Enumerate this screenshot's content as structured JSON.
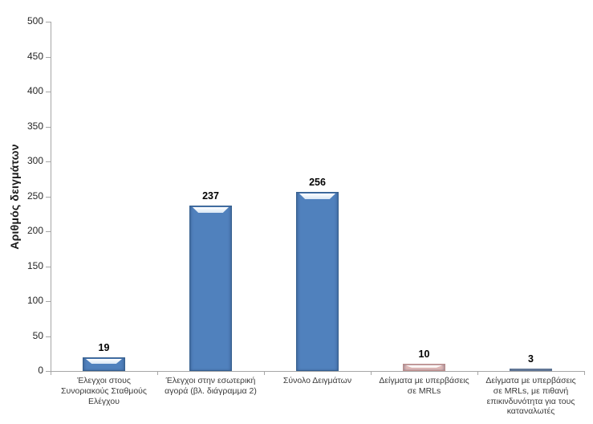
{
  "chart_data": {
    "type": "bar",
    "title": "",
    "xlabel": "",
    "ylabel": "Αριθμός δειγμάτων",
    "ylim": [
      0,
      500
    ],
    "ytick_step": 50,
    "grid": false,
    "legend": "none",
    "categories": [
      "Έλεγχοι στους\nΣυνοριακούς Σταθμούς\nΕλέγχου",
      "Έλεγχοι στην εσωτερική\nαγορά (βλ. διάγραμμα 2)",
      "Σύνολο Δειγμάτων",
      "Δείγματα με υπερβάσεις\nσε MRLs",
      "Δείγματα με υπερβάσεις\nσε MRLs, με πιθανή\nεπικινδυνότητα για τους\nκαταναλωτές"
    ],
    "values": [
      19,
      237,
      256,
      10,
      3
    ],
    "bar_styles": [
      "blue",
      "blue",
      "blue",
      "pink",
      "steel"
    ],
    "palette": {
      "blue": {
        "fill": "#5081BD",
        "edge": "#36608F",
        "highlight": "#D9E7F5"
      },
      "pink": {
        "fill": "#DFB8B6",
        "edge": "#BD8E8C",
        "highlight": "#F6ECEB"
      },
      "steel": {
        "fill": "#7F94AF",
        "edge": "#5C7394",
        "highlight": "#B7C5D6"
      }
    },
    "axis_color": "#A6A6A6",
    "tick_label_color": "#262626",
    "category_label_color": "#3A3A3A",
    "value_label_color": "#000000",
    "background_color": "#FFFFFF"
  }
}
